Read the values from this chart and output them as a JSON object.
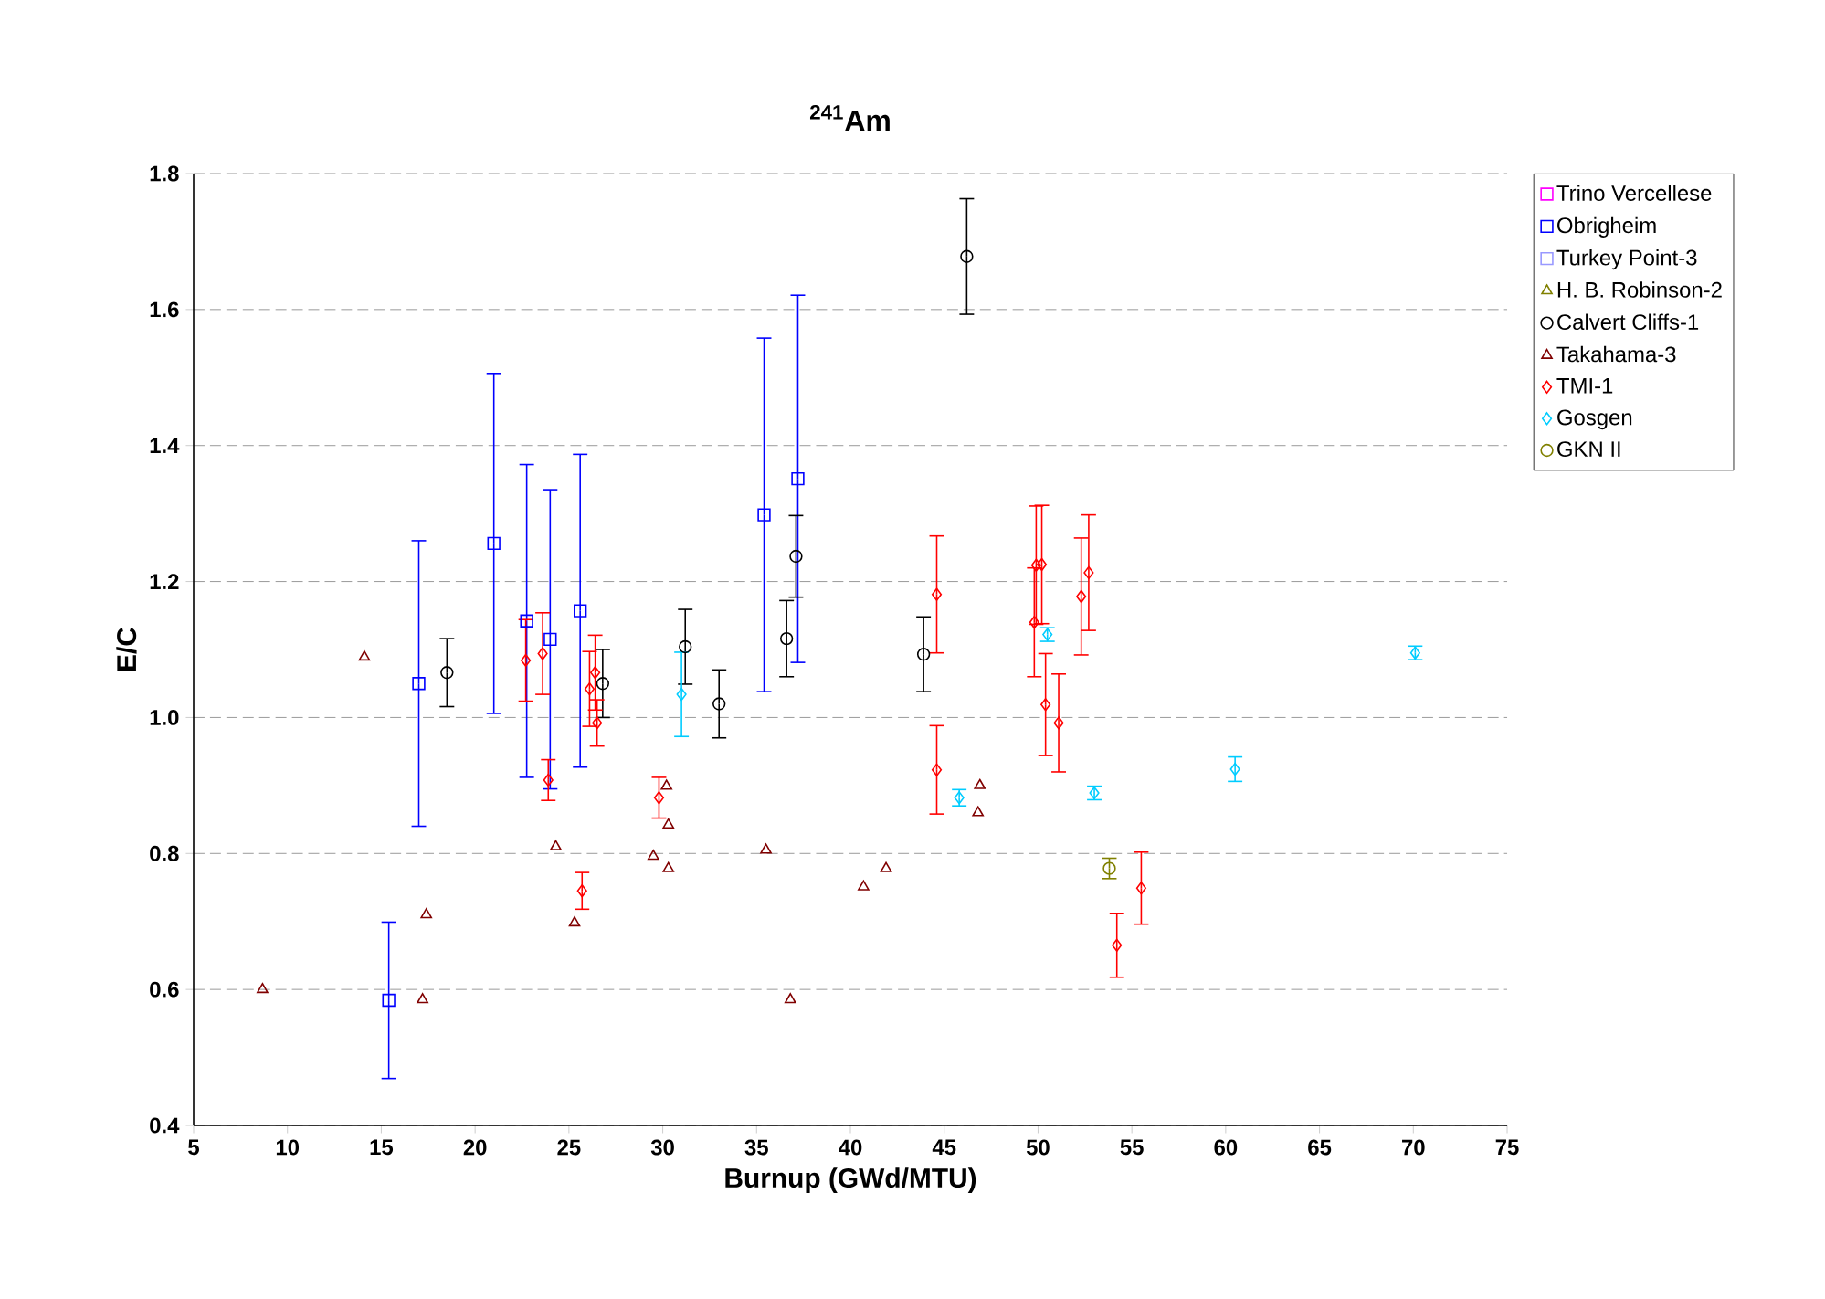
{
  "chart_data": {
    "type": "scatter",
    "title": "$^{241}$Am",
    "xlabel": "Burnup (GWd/MTU)",
    "ylabel": "E/C",
    "xlim": [
      5,
      75
    ],
    "xticks": [
      5,
      10,
      15,
      20,
      25,
      30,
      35,
      40,
      45,
      50,
      55,
      60,
      65,
      70,
      75
    ],
    "ylim": [
      0.4,
      1.8
    ],
    "yticks": [
      0.4,
      0.6,
      0.8,
      {
        "value": 1,
        "label": "1.0"
      },
      1.2,
      1.4,
      1.6,
      1.8
    ],
    "grid": "y",
    "legend": "right",
    "series": [
      {
        "name": "Trino Vercellese",
        "color": "#ff00ff",
        "marker": "square"
      },
      {
        "name": "Obrigheim",
        "color": "#0000ff",
        "marker": "square",
        "x": [
          15.4,
          17.0,
          21.0,
          22.75,
          24.0,
          25.6,
          35.4,
          37.2
        ],
        "values": [
          0.584,
          1.05,
          1.256,
          1.142,
          1.115,
          1.157,
          1.298,
          1.351
        ],
        "errors": [
          0.115,
          0.21,
          0.25,
          0.23,
          0.22,
          0.23,
          0.26,
          0.27
        ]
      },
      {
        "name": "Turkey Point-3",
        "color": "#9999ff",
        "marker": "square"
      },
      {
        "name": "H. B. Robinson-2",
        "color": "#808000",
        "marker": "triangle"
      },
      {
        "name": "Calvert Cliffs-1",
        "color": "#000000",
        "marker": "circle",
        "x": [
          18.5,
          26.8,
          31.2,
          33.0,
          36.6,
          37.1,
          43.9,
          46.2
        ],
        "values": [
          1.066,
          1.05,
          1.104,
          1.02,
          1.116,
          1.237,
          1.093,
          1.678
        ],
        "errors": [
          0.05,
          0.05,
          0.055,
          0.05,
          0.056,
          0.06,
          0.055,
          0.085
        ]
      },
      {
        "name": "Takahama-3",
        "color": "#800000",
        "marker": "triangle",
        "x": [
          8.67,
          14.1,
          17.4,
          17.2,
          24.3,
          25.3,
          30.2,
          30.3,
          29.5,
          30.3,
          35.5,
          36.8,
          40.7,
          41.9,
          46.9,
          46.8
        ],
        "values": [
          0.6,
          1.089,
          0.71,
          0.585,
          0.81,
          0.698,
          0.899,
          0.842,
          0.796,
          0.778,
          0.805,
          0.585,
          0.751,
          0.778,
          0.9,
          0.86
        ]
      },
      {
        "name": "TMI-1",
        "color": "#ff0000",
        "marker": "diamond",
        "x": [
          22.7,
          23.6,
          23.9,
          25.7,
          26.1,
          26.4,
          26.5,
          29.8,
          44.6,
          44.6,
          49.8,
          49.9,
          50.2,
          50.4,
          51.1,
          52.3,
          52.7,
          54.2,
          55.5
        ],
        "values": [
          1.084,
          1.094,
          0.908,
          0.745,
          1.042,
          1.066,
          0.992,
          0.882,
          1.181,
          0.923,
          1.14,
          1.224,
          1.225,
          1.019,
          0.992,
          1.178,
          1.213,
          0.665,
          0.749
        ],
        "errors": [
          0.06,
          0.06,
          0.03,
          0.027,
          0.055,
          0.055,
          0.034,
          0.03,
          0.086,
          0.065,
          0.08,
          0.087,
          0.087,
          0.075,
          0.072,
          0.086,
          0.085,
          0.047,
          0.053
        ]
      },
      {
        "name": "Gosgen",
        "color": "#00ccff",
        "marker": "diamond",
        "x": [
          31.0,
          45.8,
          50.5,
          53.0,
          60.5,
          70.1
        ],
        "values": [
          1.034,
          0.882,
          1.122,
          0.889,
          0.924,
          1.095
        ],
        "errors": [
          0.062,
          0.012,
          0.01,
          0.01,
          0.018,
          0.01
        ]
      },
      {
        "name": "GKN II",
        "color": "#808000",
        "marker": "circle",
        "x": [
          53.8
        ],
        "values": [
          0.778
        ],
        "errors": [
          0.015
        ]
      }
    ]
  }
}
